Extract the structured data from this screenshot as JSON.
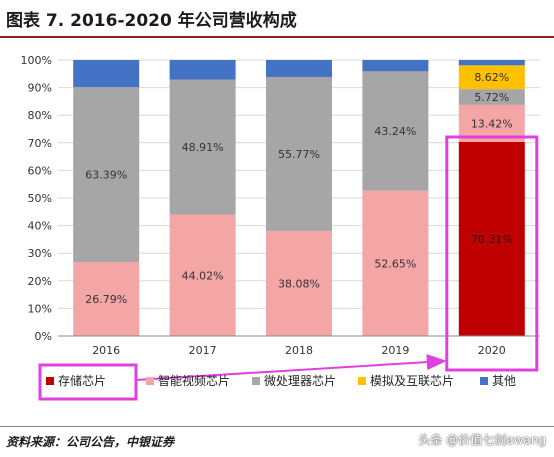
{
  "figure": {
    "title": "图表 7.  2016-2020 年公司营收构成",
    "source": "资料来源：公司公告，中银证券",
    "watermark": "头条 @价值七剑awang"
  },
  "colors": {
    "memory": "#c00000",
    "smart_video": "#f4a6a6",
    "microprocessor": "#a6a6a6",
    "analog": "#ffc000",
    "other": "#4472c4",
    "highlight": "#e040e0",
    "title_rule": "#8a1f1f"
  },
  "chart_data": {
    "type": "bar",
    "stacked": true,
    "categories": [
      "2016",
      "2017",
      "2018",
      "2019",
      "2020"
    ],
    "ylim": [
      0,
      100
    ],
    "yticks": [
      "0%",
      "10%",
      "20%",
      "30%",
      "40%",
      "50%",
      "60%",
      "70%",
      "80%",
      "90%",
      "100%"
    ],
    "legend_position": "bottom",
    "series": [
      {
        "key": "memory",
        "name": "存储芯片",
        "values": [
          0,
          0,
          0,
          0,
          70.31
        ],
        "labels": [
          "",
          "",
          "",
          "",
          "70.31%"
        ]
      },
      {
        "key": "smart_video",
        "name": "智能视频芯片",
        "values": [
          26.79,
          44.02,
          38.08,
          52.65,
          13.42
        ],
        "labels": [
          "26.79%",
          "44.02%",
          "38.08%",
          "52.65%",
          "13.42%"
        ]
      },
      {
        "key": "microprocessor",
        "name": "微处理器芯片",
        "values": [
          63.39,
          48.91,
          55.77,
          43.24,
          5.72
        ],
        "labels": [
          "63.39%",
          "48.91%",
          "55.77%",
          "43.24%",
          "5.72%"
        ]
      },
      {
        "key": "analog",
        "name": "模拟及互联芯片",
        "values": [
          0,
          0,
          0,
          0,
          8.62
        ],
        "labels": [
          "",
          "",
          "",
          "",
          "8.62%"
        ]
      },
      {
        "key": "other",
        "name": "其他",
        "values": [
          9.82,
          7.07,
          6.15,
          4.11,
          1.93
        ],
        "labels": [
          "",
          "",
          "",
          "",
          ""
        ]
      }
    ]
  }
}
